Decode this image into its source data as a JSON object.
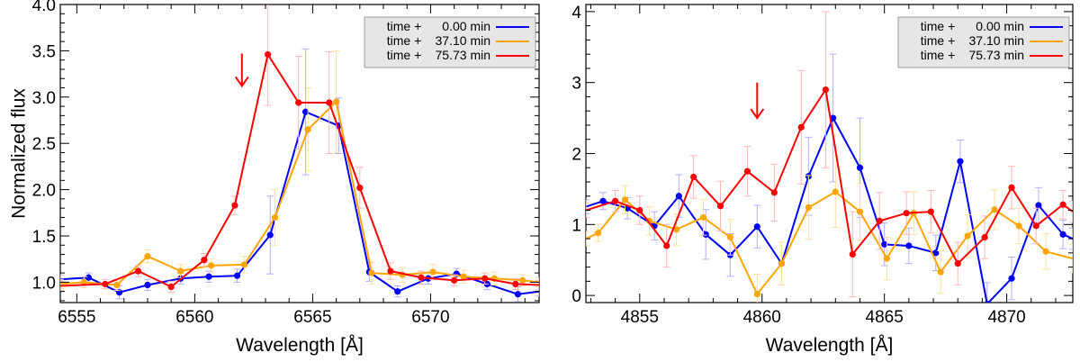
{
  "chart_data": [
    {
      "type": "line",
      "title": "",
      "xlabel": "Wavelength [Å]",
      "ylabel": "Normalized flux",
      "xlim": [
        6554.3,
        6574.6
      ],
      "ylim": [
        0.78,
        4.0
      ],
      "xticks": [
        6555,
        6560,
        6565,
        6570
      ],
      "yticks": [
        1.0,
        1.5,
        2.0,
        2.5,
        3.0,
        3.5,
        4.0
      ],
      "ytick_labels": [
        "1.0",
        "1.5",
        "2.0",
        "2.5",
        "3.0",
        "3.5",
        "4.0"
      ],
      "annotation": {
        "type": "arrow",
        "x": 6562.0,
        "y_from": 3.47,
        "y_to": 3.12,
        "color": "#ff0000"
      },
      "legend": {
        "position": "top-right",
        "entries": [
          {
            "prefix": "time +",
            "value": "0.00 min",
            "color": "#0000ff"
          },
          {
            "prefix": "time +",
            "value": "37.10 min",
            "color": "#ffa500"
          },
          {
            "prefix": "time +",
            "value": "75.73 min",
            "color": "#ff0000"
          }
        ]
      },
      "series": [
        {
          "name": "time + 0.00 min",
          "color": "#0000ff",
          "x": [
            6554.3,
            6555.5,
            6556.8,
            6558.0,
            6559.4,
            6560.6,
            6561.8,
            6563.2,
            6564.7,
            6566.1,
            6567.4,
            6568.6,
            6569.9,
            6571.1,
            6572.4,
            6573.7,
            6574.6
          ],
          "y": [
            1.03,
            1.05,
            0.89,
            0.97,
            1.04,
            1.06,
            1.07,
            1.51,
            2.84,
            2.69,
            1.11,
            0.9,
            1.04,
            1.09,
            0.98,
            0.87,
            0.9
          ],
          "err": [
            0.05,
            0.05,
            0.07,
            0.06,
            0.06,
            0.06,
            0.07,
            0.42,
            0.68,
            0.3,
            0.1,
            0.06,
            0.06,
            0.06,
            0.06,
            0.08,
            0.05
          ]
        },
        {
          "name": "time + 37.10 min",
          "color": "#ffa500",
          "x": [
            6554.3,
            6555.3,
            6556.7,
            6558.0,
            6559.4,
            6560.7,
            6562.1,
            6563.4,
            6564.8,
            6566.0,
            6567.5,
            6568.8,
            6570.1,
            6571.4,
            6572.7,
            6573.9,
            6574.6
          ],
          "y": [
            0.98,
            1.0,
            0.97,
            1.28,
            1.12,
            1.18,
            1.19,
            1.7,
            2.65,
            2.95,
            1.1,
            1.08,
            1.11,
            1.06,
            1.04,
            1.02,
            1.0
          ],
          "err": [
            0.05,
            0.06,
            0.06,
            0.07,
            0.07,
            0.07,
            0.09,
            0.3,
            0.45,
            0.55,
            0.12,
            0.08,
            0.08,
            0.07,
            0.07,
            0.06,
            0.05
          ]
        },
        {
          "name": "time + 75.73 min",
          "color": "#ff0000",
          "x": [
            6554.3,
            6556.2,
            6557.6,
            6559.0,
            6560.4,
            6561.7,
            6563.1,
            6564.4,
            6565.7,
            6567.0,
            6568.3,
            6569.6,
            6571.0,
            6572.3,
            6573.6,
            6574.6
          ],
          "y": [
            0.96,
            0.98,
            1.12,
            0.95,
            1.24,
            1.83,
            3.46,
            2.94,
            2.94,
            2.02,
            1.12,
            1.05,
            1.02,
            1.04,
            0.98,
            0.97
          ],
          "err": [
            0.05,
            0.05,
            0.06,
            0.06,
            0.07,
            0.1,
            0.55,
            0.5,
            0.55,
            0.22,
            0.09,
            0.07,
            0.06,
            0.06,
            0.06,
            0.05
          ]
        }
      ]
    },
    {
      "type": "line",
      "title": "",
      "xlabel": "Wavelength [Å]",
      "ylabel": "",
      "xlim": [
        4852.8,
        4872.7
      ],
      "ylim": [
        -0.1,
        4.1
      ],
      "xticks": [
        4855,
        4860,
        4865,
        4870
      ],
      "yticks": [
        0,
        1,
        2,
        3,
        4
      ],
      "ytick_labels": [
        "0",
        "1",
        "2",
        "3",
        "4"
      ],
      "annotation": {
        "type": "arrow",
        "x": 4859.8,
        "y_from": 3.0,
        "y_to": 2.5,
        "color": "#ff0000"
      },
      "legend": {
        "position": "top-right",
        "entries": [
          {
            "prefix": "time +",
            "value": "0.00 min",
            "color": "#0000ff"
          },
          {
            "prefix": "time +",
            "value": "37.10 min",
            "color": "#ffa500"
          },
          {
            "prefix": "time +",
            "value": "75.73 min",
            "color": "#ff0000"
          }
        ]
      },
      "series": [
        {
          "name": "time + 0.00 min",
          "color": "#0000ff",
          "x": [
            4852.8,
            4853.5,
            4854.5,
            4855.6,
            4856.6,
            4857.7,
            4858.7,
            4859.8,
            4860.8,
            4861.9,
            4862.9,
            4864.0,
            4865.0,
            4866.0,
            4867.1,
            4868.1,
            4869.2,
            4870.2,
            4871.3,
            4872.3,
            4872.7
          ],
          "y": [
            1.25,
            1.33,
            1.23,
            0.98,
            1.4,
            0.86,
            0.57,
            0.97,
            0.45,
            1.68,
            2.5,
            1.8,
            0.72,
            0.7,
            0.6,
            1.89,
            -0.12,
            0.24,
            1.27,
            0.86,
            0.8
          ],
          "err": [
            0.1,
            0.12,
            0.15,
            0.2,
            0.3,
            0.35,
            0.3,
            0.3,
            0.3,
            0.55,
            0.9,
            0.7,
            0.3,
            0.25,
            0.25,
            0.3,
            0.3,
            0.3,
            0.25,
            0.2,
            0.15
          ]
        },
        {
          "name": "time + 37.10 min",
          "color": "#ffa500",
          "x": [
            4852.8,
            4853.3,
            4854.4,
            4855.4,
            4856.5,
            4857.6,
            4858.7,
            4859.8,
            4860.8,
            4861.9,
            4863.0,
            4864.0,
            4865.1,
            4866.2,
            4867.3,
            4868.4,
            4869.5,
            4870.5,
            4871.6,
            4872.7
          ],
          "y": [
            0.8,
            0.88,
            1.35,
            1.05,
            0.93,
            1.1,
            0.82,
            0.02,
            0.45,
            1.24,
            1.46,
            1.18,
            0.52,
            1.16,
            0.33,
            0.84,
            1.21,
            0.98,
            0.62,
            0.52
          ],
          "err": [
            0.1,
            0.12,
            0.2,
            0.2,
            0.22,
            0.25,
            0.25,
            0.28,
            0.3,
            0.45,
            0.5,
            0.4,
            0.3,
            0.3,
            0.3,
            0.3,
            0.28,
            0.25,
            0.25,
            0.2
          ]
        },
        {
          "name": "time + 75.73 min",
          "color": "#ff0000",
          "x": [
            4852.8,
            4854.0,
            4855.0,
            4856.1,
            4857.2,
            4858.3,
            4859.4,
            4860.5,
            4861.6,
            4862.6,
            4863.7,
            4864.8,
            4865.9,
            4866.9,
            4868.0,
            4869.1,
            4870.2,
            4871.2,
            4872.3,
            4872.7
          ],
          "y": [
            1.2,
            1.33,
            1.2,
            0.7,
            1.67,
            1.26,
            1.75,
            1.45,
            2.37,
            2.9,
            0.58,
            1.05,
            1.16,
            1.18,
            0.45,
            0.82,
            1.52,
            0.98,
            1.28,
            1.18
          ],
          "err": [
            0.1,
            0.15,
            0.2,
            0.3,
            0.3,
            0.35,
            0.35,
            0.4,
            0.8,
            1.1,
            0.6,
            0.4,
            0.3,
            0.3,
            0.3,
            0.3,
            0.3,
            0.25,
            0.2,
            0.15
          ]
        }
      ]
    }
  ]
}
